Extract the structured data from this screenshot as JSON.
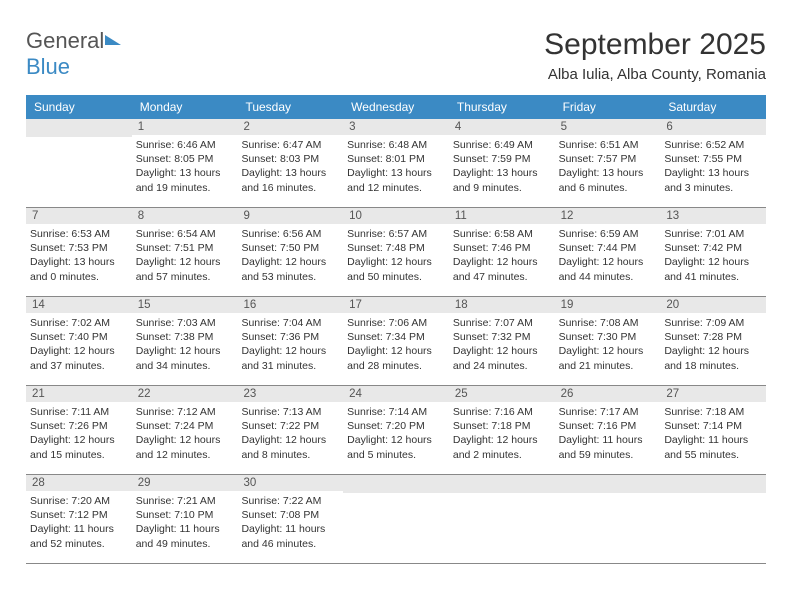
{
  "logo": {
    "general": "General",
    "blue": "Blue"
  },
  "title": "September 2025",
  "location": "Alba Iulia, Alba County, Romania",
  "weekdays": [
    "Sunday",
    "Monday",
    "Tuesday",
    "Wednesday",
    "Thursday",
    "Friday",
    "Saturday"
  ],
  "colors": {
    "header_bg": "#3b8ac4",
    "daynum_bg": "#e8e8e8",
    "logo_blue": "#3b8ac4",
    "logo_gray": "#555555",
    "text": "#333333"
  },
  "weeks": [
    [
      {
        "n": "",
        "sunrise": "",
        "sunset": "",
        "daylight": ""
      },
      {
        "n": "1",
        "sunrise": "Sunrise: 6:46 AM",
        "sunset": "Sunset: 8:05 PM",
        "daylight": "Daylight: 13 hours and 19 minutes."
      },
      {
        "n": "2",
        "sunrise": "Sunrise: 6:47 AM",
        "sunset": "Sunset: 8:03 PM",
        "daylight": "Daylight: 13 hours and 16 minutes."
      },
      {
        "n": "3",
        "sunrise": "Sunrise: 6:48 AM",
        "sunset": "Sunset: 8:01 PM",
        "daylight": "Daylight: 13 hours and 12 minutes."
      },
      {
        "n": "4",
        "sunrise": "Sunrise: 6:49 AM",
        "sunset": "Sunset: 7:59 PM",
        "daylight": "Daylight: 13 hours and 9 minutes."
      },
      {
        "n": "5",
        "sunrise": "Sunrise: 6:51 AM",
        "sunset": "Sunset: 7:57 PM",
        "daylight": "Daylight: 13 hours and 6 minutes."
      },
      {
        "n": "6",
        "sunrise": "Sunrise: 6:52 AM",
        "sunset": "Sunset: 7:55 PM",
        "daylight": "Daylight: 13 hours and 3 minutes."
      }
    ],
    [
      {
        "n": "7",
        "sunrise": "Sunrise: 6:53 AM",
        "sunset": "Sunset: 7:53 PM",
        "daylight": "Daylight: 13 hours and 0 minutes."
      },
      {
        "n": "8",
        "sunrise": "Sunrise: 6:54 AM",
        "sunset": "Sunset: 7:51 PM",
        "daylight": "Daylight: 12 hours and 57 minutes."
      },
      {
        "n": "9",
        "sunrise": "Sunrise: 6:56 AM",
        "sunset": "Sunset: 7:50 PM",
        "daylight": "Daylight: 12 hours and 53 minutes."
      },
      {
        "n": "10",
        "sunrise": "Sunrise: 6:57 AM",
        "sunset": "Sunset: 7:48 PM",
        "daylight": "Daylight: 12 hours and 50 minutes."
      },
      {
        "n": "11",
        "sunrise": "Sunrise: 6:58 AM",
        "sunset": "Sunset: 7:46 PM",
        "daylight": "Daylight: 12 hours and 47 minutes."
      },
      {
        "n": "12",
        "sunrise": "Sunrise: 6:59 AM",
        "sunset": "Sunset: 7:44 PM",
        "daylight": "Daylight: 12 hours and 44 minutes."
      },
      {
        "n": "13",
        "sunrise": "Sunrise: 7:01 AM",
        "sunset": "Sunset: 7:42 PM",
        "daylight": "Daylight: 12 hours and 41 minutes."
      }
    ],
    [
      {
        "n": "14",
        "sunrise": "Sunrise: 7:02 AM",
        "sunset": "Sunset: 7:40 PM",
        "daylight": "Daylight: 12 hours and 37 minutes."
      },
      {
        "n": "15",
        "sunrise": "Sunrise: 7:03 AM",
        "sunset": "Sunset: 7:38 PM",
        "daylight": "Daylight: 12 hours and 34 minutes."
      },
      {
        "n": "16",
        "sunrise": "Sunrise: 7:04 AM",
        "sunset": "Sunset: 7:36 PM",
        "daylight": "Daylight: 12 hours and 31 minutes."
      },
      {
        "n": "17",
        "sunrise": "Sunrise: 7:06 AM",
        "sunset": "Sunset: 7:34 PM",
        "daylight": "Daylight: 12 hours and 28 minutes."
      },
      {
        "n": "18",
        "sunrise": "Sunrise: 7:07 AM",
        "sunset": "Sunset: 7:32 PM",
        "daylight": "Daylight: 12 hours and 24 minutes."
      },
      {
        "n": "19",
        "sunrise": "Sunrise: 7:08 AM",
        "sunset": "Sunset: 7:30 PM",
        "daylight": "Daylight: 12 hours and 21 minutes."
      },
      {
        "n": "20",
        "sunrise": "Sunrise: 7:09 AM",
        "sunset": "Sunset: 7:28 PM",
        "daylight": "Daylight: 12 hours and 18 minutes."
      }
    ],
    [
      {
        "n": "21",
        "sunrise": "Sunrise: 7:11 AM",
        "sunset": "Sunset: 7:26 PM",
        "daylight": "Daylight: 12 hours and 15 minutes."
      },
      {
        "n": "22",
        "sunrise": "Sunrise: 7:12 AM",
        "sunset": "Sunset: 7:24 PM",
        "daylight": "Daylight: 12 hours and 12 minutes."
      },
      {
        "n": "23",
        "sunrise": "Sunrise: 7:13 AM",
        "sunset": "Sunset: 7:22 PM",
        "daylight": "Daylight: 12 hours and 8 minutes."
      },
      {
        "n": "24",
        "sunrise": "Sunrise: 7:14 AM",
        "sunset": "Sunset: 7:20 PM",
        "daylight": "Daylight: 12 hours and 5 minutes."
      },
      {
        "n": "25",
        "sunrise": "Sunrise: 7:16 AM",
        "sunset": "Sunset: 7:18 PM",
        "daylight": "Daylight: 12 hours and 2 minutes."
      },
      {
        "n": "26",
        "sunrise": "Sunrise: 7:17 AM",
        "sunset": "Sunset: 7:16 PM",
        "daylight": "Daylight: 11 hours and 59 minutes."
      },
      {
        "n": "27",
        "sunrise": "Sunrise: 7:18 AM",
        "sunset": "Sunset: 7:14 PM",
        "daylight": "Daylight: 11 hours and 55 minutes."
      }
    ],
    [
      {
        "n": "28",
        "sunrise": "Sunrise: 7:20 AM",
        "sunset": "Sunset: 7:12 PM",
        "daylight": "Daylight: 11 hours and 52 minutes."
      },
      {
        "n": "29",
        "sunrise": "Sunrise: 7:21 AM",
        "sunset": "Sunset: 7:10 PM",
        "daylight": "Daylight: 11 hours and 49 minutes."
      },
      {
        "n": "30",
        "sunrise": "Sunrise: 7:22 AM",
        "sunset": "Sunset: 7:08 PM",
        "daylight": "Daylight: 11 hours and 46 minutes."
      },
      {
        "n": "",
        "sunrise": "",
        "sunset": "",
        "daylight": ""
      },
      {
        "n": "",
        "sunrise": "",
        "sunset": "",
        "daylight": ""
      },
      {
        "n": "",
        "sunrise": "",
        "sunset": "",
        "daylight": ""
      },
      {
        "n": "",
        "sunrise": "",
        "sunset": "",
        "daylight": ""
      }
    ]
  ]
}
